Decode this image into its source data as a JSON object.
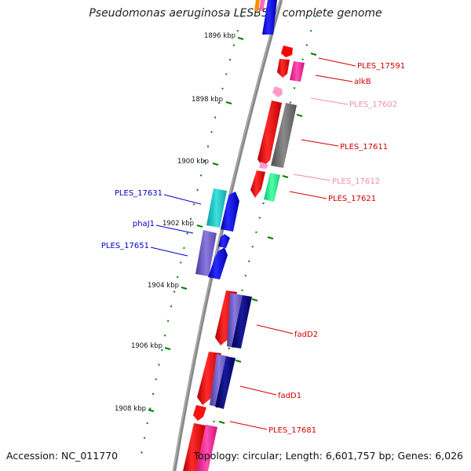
{
  "title": "Pseudomonas aeruginosa LESB58, complete genome",
  "footer": {
    "accession": "Accession: NC_011770",
    "topology": "Topology: circular; Length: 6,601,757 bp; Genes: 6,026"
  },
  "kbp_labels": [
    "1896 kbp",
    "1898 kbp",
    "1900 kbp",
    "1902 kbp",
    "1904 kbp",
    "1906 kbp",
    "1908 kbp"
  ],
  "gene_labels": [
    {
      "text": "PLES_17591",
      "color": "#d40000"
    },
    {
      "text": "alkB",
      "color": "#d40000"
    },
    {
      "text": "PLES_17602",
      "color": "#f08cb4"
    },
    {
      "text": "PLES_17611",
      "color": "#d40000"
    },
    {
      "text": "PLES_17612",
      "color": "#f08cb4"
    },
    {
      "text": "PLES_17621",
      "color": "#d40000"
    },
    {
      "text": "PLES_17631",
      "color": "#0000c8"
    },
    {
      "text": "phaJ1",
      "color": "#0000c8"
    },
    {
      "text": "PLES_17651",
      "color": "#0000c8"
    },
    {
      "text": "fadD2",
      "color": "#d40000"
    },
    {
      "text": "fadD1",
      "color": "#d40000"
    },
    {
      "text": "PLES_17681",
      "color": "#d40000"
    }
  ],
  "colors": {
    "backbone": "#888888",
    "tick": "#008000",
    "red": "#ff0000",
    "pink": "#ff69b4",
    "magenta": "#ff1493",
    "grey": "#707070",
    "teal": "#20b2aa",
    "green": "#2ee88a",
    "blue": "#0000ff",
    "slate": "#6a5acd",
    "navy": "#000080",
    "orange": "#ff8c00"
  }
}
